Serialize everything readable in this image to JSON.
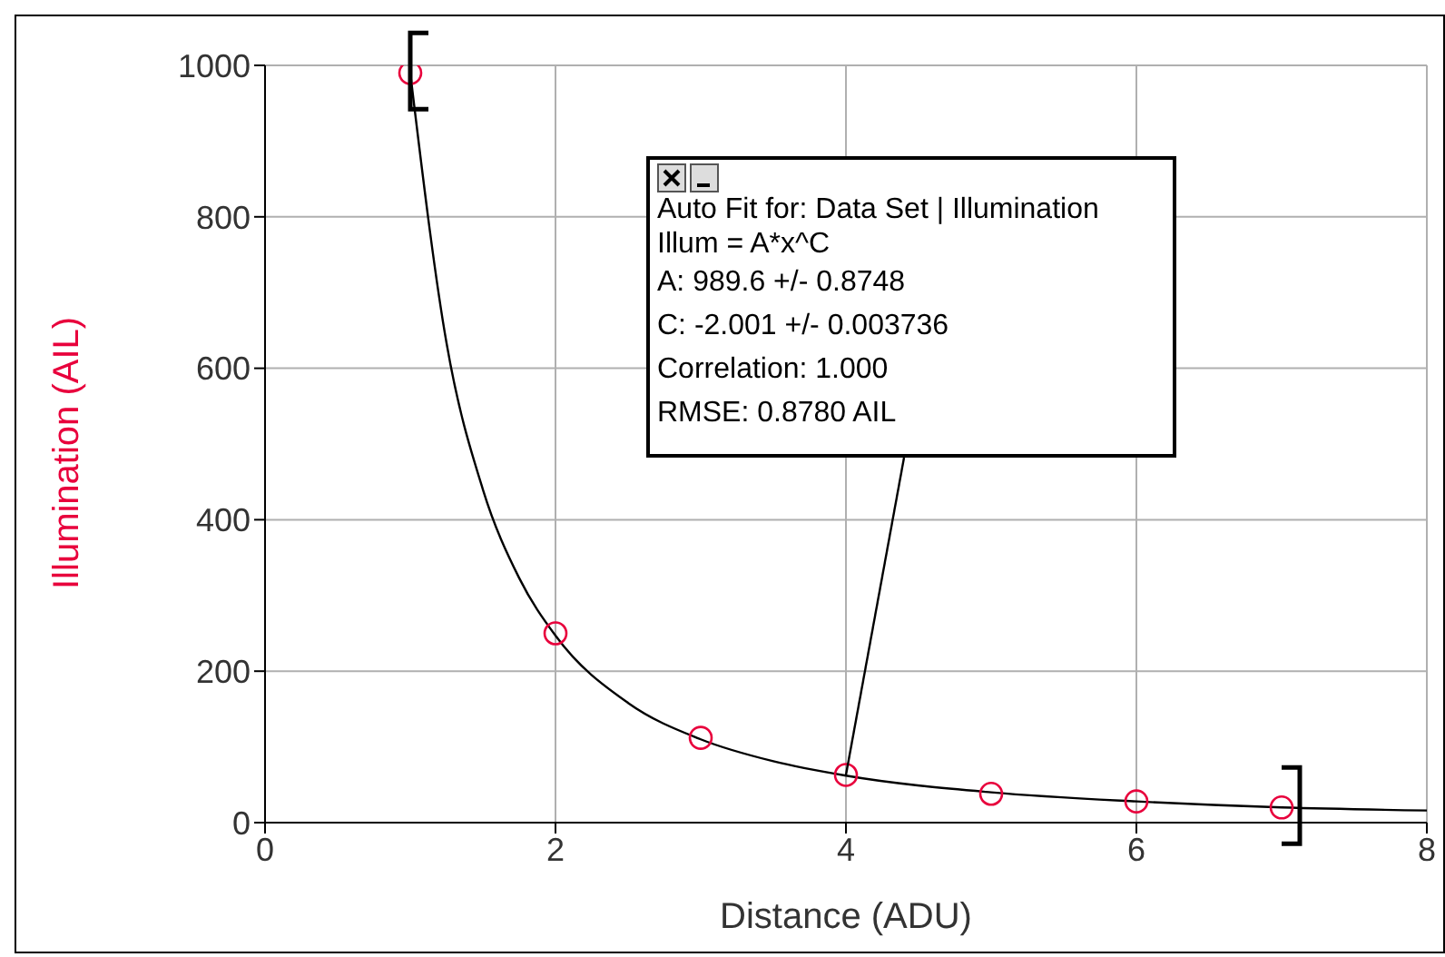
{
  "chart_data": {
    "type": "scatter",
    "xlabel": "Distance (ADU)",
    "ylabel": "Illumination (AIL)",
    "xlim": [
      0,
      8
    ],
    "xticks": [
      0,
      2,
      4,
      6,
      8
    ],
    "ylim": [
      0,
      1000
    ],
    "yticks": [
      0,
      200,
      400,
      600,
      800,
      1000
    ],
    "grid": true,
    "legend": false,
    "marker": "circle",
    "x": [
      1,
      2,
      3,
      4,
      5,
      6,
      7
    ],
    "series": [
      {
        "color": "#e8003c",
        "values": [
          990,
          250,
          112,
          63,
          38,
          28,
          20
        ]
      },
      {
        "type": "line",
        "color": "#000000",
        "marker": "none",
        "x": [
          1,
          1.25,
          1.5,
          1.75,
          2,
          2.5,
          3,
          3.5,
          4,
          5,
          6,
          7,
          8
        ],
        "values": [
          990,
          633,
          440,
          323,
          247,
          158,
          110,
          81,
          62,
          40,
          28,
          20,
          16
        ]
      }
    ],
    "annotations": [
      "Auto Fit for: Data Set | Illumination",
      "Illum = A*x^C",
      "A: 989.6 +/- 0.8748",
      "C: -2.001 +/- 0.003736",
      "Correlation: 1.000",
      {
        "text": "RMSE: 0.8780 AIL",
        "x": 4,
        "y": 63
      }
    ]
  }
}
